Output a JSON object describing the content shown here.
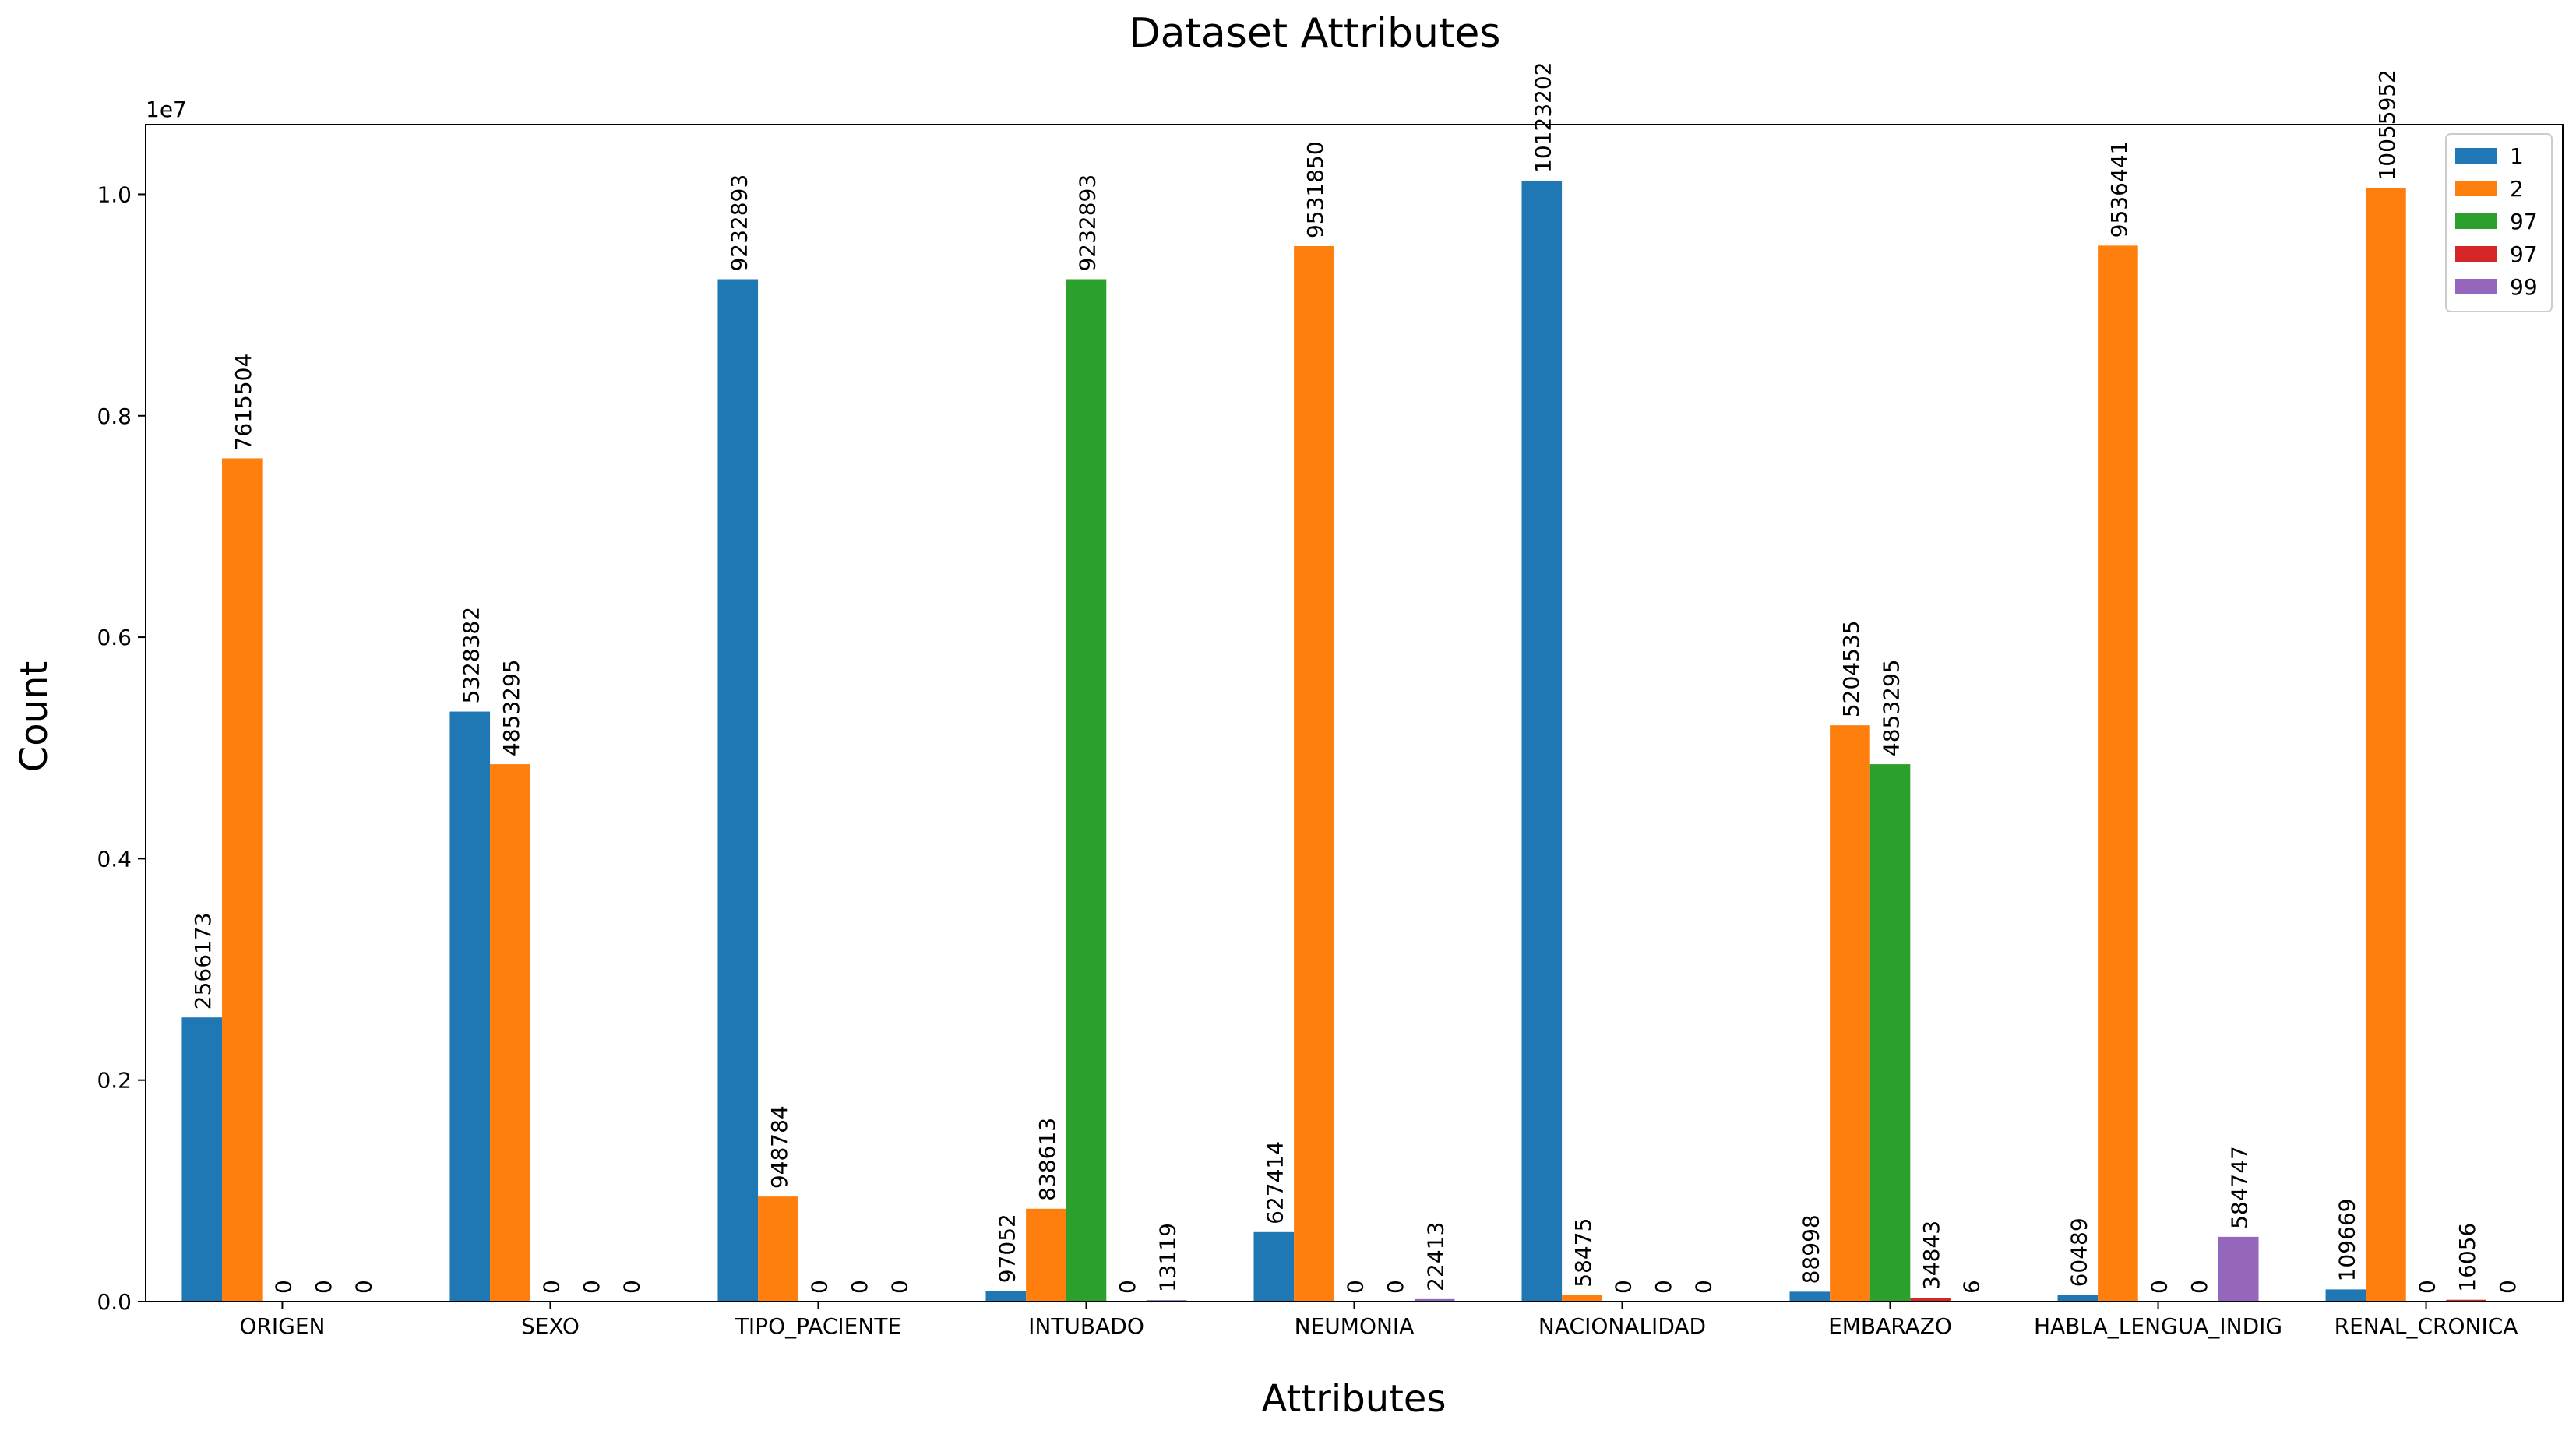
{
  "chart_data": {
    "type": "bar",
    "title": "Dataset Attributes",
    "xlabel": "Attributes",
    "ylabel": "Count",
    "y_offset_text": "1e7",
    "y_scale": 10000000,
    "ylim": [
      0,
      10629362
    ],
    "yticks": [
      0.0,
      0.2,
      0.4,
      0.6,
      0.8,
      1.0
    ],
    "ytick_labels": [
      "0.0",
      "0.2",
      "0.4",
      "0.6",
      "0.8",
      "1.0"
    ],
    "grid": false,
    "legend_position": "top-right",
    "categories": [
      "ORIGEN",
      "SEXO",
      "TIPO_PACIENTE",
      "INTUBADO",
      "NEUMONIA",
      "NACIONALIDAD",
      "EMBARAZO",
      "HABLA_LENGUA_INDIG",
      "RENAL_CRONICA"
    ],
    "series": [
      {
        "name": "1",
        "color": "#1f77b4",
        "values": [
          2566173,
          5328382,
          9232893,
          97052,
          627414,
          10123202,
          88998,
          60489,
          109669
        ]
      },
      {
        "name": "2",
        "color": "#ff7f0e",
        "values": [
          7615504,
          4853295,
          948784,
          838613,
          9531850,
          58475,
          5204535,
          9536441,
          10055952
        ]
      },
      {
        "name": "97",
        "color": "#2ca02c",
        "values": [
          0,
          0,
          0,
          9232893,
          0,
          0,
          4853295,
          0,
          0
        ]
      },
      {
        "name": "97",
        "color": "#d62728",
        "values": [
          0,
          0,
          0,
          0,
          0,
          0,
          34843,
          0,
          16056
        ]
      },
      {
        "name": "99",
        "color": "#9467bd",
        "values": [
          0,
          0,
          0,
          13119,
          22413,
          0,
          6,
          584747,
          0
        ]
      }
    ]
  }
}
